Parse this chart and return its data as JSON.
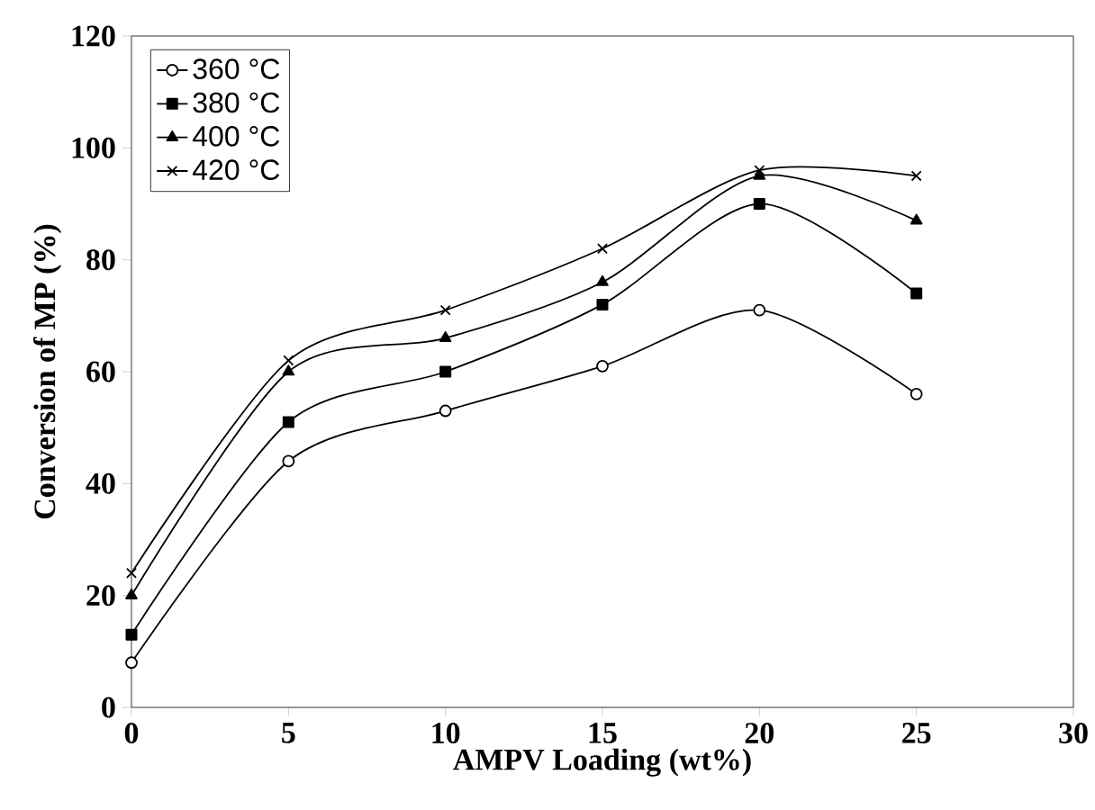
{
  "chart_data": {
    "type": "line",
    "xlabel": "AMPV Loading (wt%)",
    "ylabel": "Conversion of MP (%)",
    "x": [
      0,
      5,
      10,
      15,
      20,
      25
    ],
    "xlim": [
      0,
      30
    ],
    "xticks": [
      0,
      5,
      10,
      15,
      20,
      25,
      30
    ],
    "ylim": [
      0,
      120
    ],
    "yticks": [
      0,
      20,
      40,
      60,
      80,
      100,
      120
    ],
    "legend": "top left",
    "grid": false,
    "line_style": "solid",
    "series": [
      {
        "name": "360 °C",
        "color": "#000000",
        "marker": "circle",
        "values": [
          8,
          44,
          53,
          61,
          71,
          56
        ]
      },
      {
        "name": "380 °C",
        "color": "#000000",
        "marker": "square",
        "values": [
          13,
          51,
          60,
          72,
          90,
          74
        ]
      },
      {
        "name": "400 °C",
        "color": "#000000",
        "marker": "triangle",
        "values": [
          20,
          60,
          66,
          76,
          95,
          87
        ]
      },
      {
        "name": "420 °C",
        "color": "#000000",
        "marker": "cross",
        "values": [
          24,
          62,
          71,
          82,
          96,
          95
        ]
      }
    ]
  }
}
